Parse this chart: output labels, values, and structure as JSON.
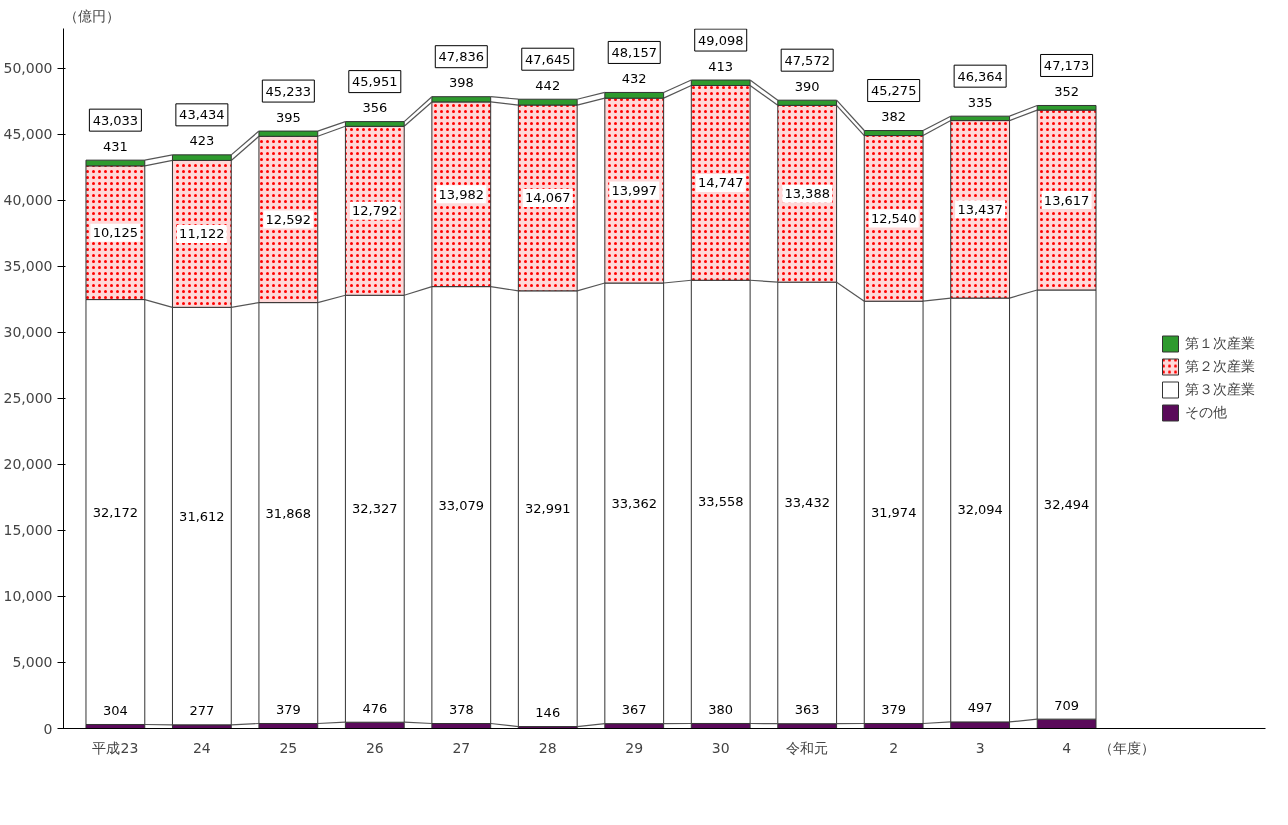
{
  "chart_data": {
    "type": "bar",
    "stacked": true,
    "ylabel": "（億円）",
    "xlabel": "（年度）",
    "categories": [
      "平成23",
      "24",
      "25",
      "26",
      "27",
      "28",
      "29",
      "30",
      "令和元",
      "2",
      "3",
      "4"
    ],
    "series": [
      {
        "name": "その他",
        "color": "#5a0a5a",
        "values": [
          304,
          277,
          379,
          476,
          378,
          146,
          367,
          380,
          363,
          379,
          497,
          709
        ],
        "value_labels": [
          "304",
          "277",
          "379",
          "476",
          "378",
          "146",
          "367",
          "380",
          "363",
          "379",
          "497",
          "709"
        ]
      },
      {
        "name": "第３次産業",
        "color": "#ffffff",
        "values": [
          32172,
          31612,
          31868,
          32327,
          33079,
          32991,
          33362,
          33558,
          33432,
          31974,
          32094,
          32494
        ],
        "value_labels": [
          "32,172",
          "31,612",
          "31,868",
          "32,327",
          "33,079",
          "32,991",
          "33,362",
          "33,558",
          "33,432",
          "31,974",
          "32,094",
          "32,494"
        ]
      },
      {
        "name": "第２次産業",
        "color": "#ffd8d8",
        "values": [
          10125,
          11122,
          12592,
          12792,
          13982,
          14067,
          13997,
          14747,
          13388,
          12540,
          13437,
          13617
        ],
        "value_labels": [
          "10,125",
          "11,122",
          "12,592",
          "12,792",
          "13,982",
          "14,067",
          "13,997",
          "14,747",
          "13,388",
          "12,540",
          "13,437",
          "13,617"
        ]
      },
      {
        "name": "第１次産業",
        "color": "#2e9a2e",
        "values": [
          431,
          423,
          395,
          356,
          398,
          442,
          432,
          413,
          390,
          382,
          335,
          352
        ],
        "value_labels": [
          "431",
          "423",
          "395",
          "356",
          "398",
          "442",
          "432",
          "413",
          "390",
          "382",
          "335",
          "352"
        ]
      }
    ],
    "totals": [
      "43,033",
      "43,434",
      "45,233",
      "45,951",
      "47,836",
      "47,645",
      "48,157",
      "49,098",
      "47,572",
      "45,275",
      "46,364",
      "47,173"
    ],
    "ylim": [
      0,
      53000
    ],
    "yticks": [
      {
        "value": 0,
        "label": "0"
      },
      {
        "value": 5000,
        "label": "5,000"
      },
      {
        "value": 10000,
        "label": "10,000"
      },
      {
        "value": 15000,
        "label": "15,000"
      },
      {
        "value": 20000,
        "label": "20,000"
      },
      {
        "value": 25000,
        "label": "25,000"
      },
      {
        "value": 30000,
        "label": "30,000"
      },
      {
        "value": 35000,
        "label": "35,000"
      },
      {
        "value": 40000,
        "label": "40,000"
      },
      {
        "value": 45000,
        "label": "45,000"
      },
      {
        "value": 50000,
        "label": "50,000"
      }
    ],
    "grid": false,
    "legend": "right"
  }
}
